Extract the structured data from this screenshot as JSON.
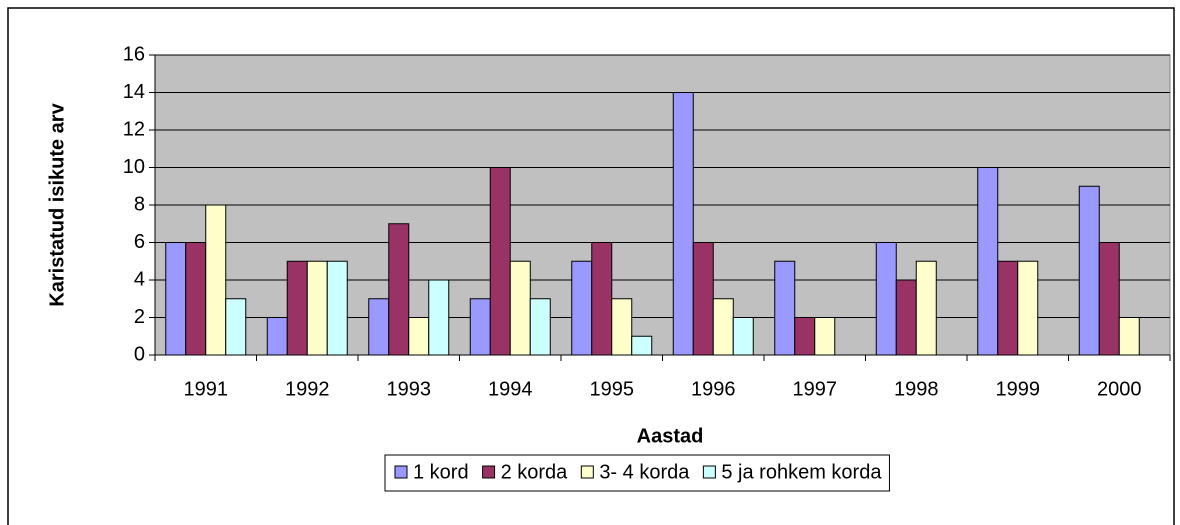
{
  "chart_data": {
    "type": "bar",
    "x_label": "Aastad",
    "y_label": "Karistatud isikute arv",
    "categories": [
      "1991",
      "1992",
      "1993",
      "1994",
      "1995",
      "1996",
      "1997",
      "1998",
      "1999",
      "2000"
    ],
    "series": [
      {
        "name": "1 kord",
        "color": "#9999ff",
        "values": [
          6,
          2,
          3,
          3,
          5,
          14,
          5,
          6,
          10,
          9
        ]
      },
      {
        "name": "2 korda",
        "color": "#993366",
        "values": [
          6,
          5,
          7,
          10,
          6,
          6,
          2,
          4,
          5,
          6
        ]
      },
      {
        "name": "3- 4 korda",
        "color": "#ffffcc",
        "values": [
          8,
          5,
          2,
          5,
          3,
          3,
          2,
          5,
          5,
          2
        ]
      },
      {
        "name": "5 ja rohkem korda",
        "color": "#ccffff",
        "values": [
          3,
          5,
          4,
          3,
          1,
          2,
          0,
          0,
          0,
          0
        ]
      }
    ],
    "ylim": [
      0,
      16
    ],
    "yticks": [
      0,
      2,
      4,
      6,
      8,
      10,
      12,
      14,
      16
    ],
    "grid": true,
    "plot_background": "#c0c0c0",
    "legend": "bottom"
  }
}
